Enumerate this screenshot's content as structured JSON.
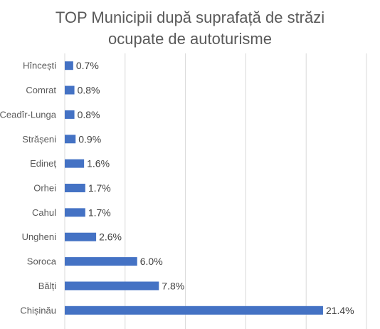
{
  "chart_data": {
    "type": "bar",
    "orientation": "horizontal",
    "title": [
      "TOP Municipii după suprafață de străzi",
      "ocupate de autoturisme"
    ],
    "categories": [
      "Hîncești",
      "Comrat",
      "Ceadîr-Lunga",
      "Strășeni",
      "Edineț",
      "Orhei",
      "Cahul",
      "Ungheni",
      "Soroca",
      "Bălți",
      "Chișinău"
    ],
    "values": [
      0.7,
      0.8,
      0.8,
      0.9,
      1.6,
      1.7,
      1.7,
      2.6,
      6.0,
      7.8,
      21.4
    ],
    "value_labels": [
      "0.7%",
      "0.8%",
      "0.8%",
      "0.9%",
      "1.6%",
      "1.7%",
      "1.7%",
      "2.6%",
      "6.0%",
      "7.8%",
      "21.4%"
    ],
    "xlim": [
      0,
      25
    ],
    "grid": true,
    "legend": "none",
    "bar_color": "#4472C4"
  }
}
